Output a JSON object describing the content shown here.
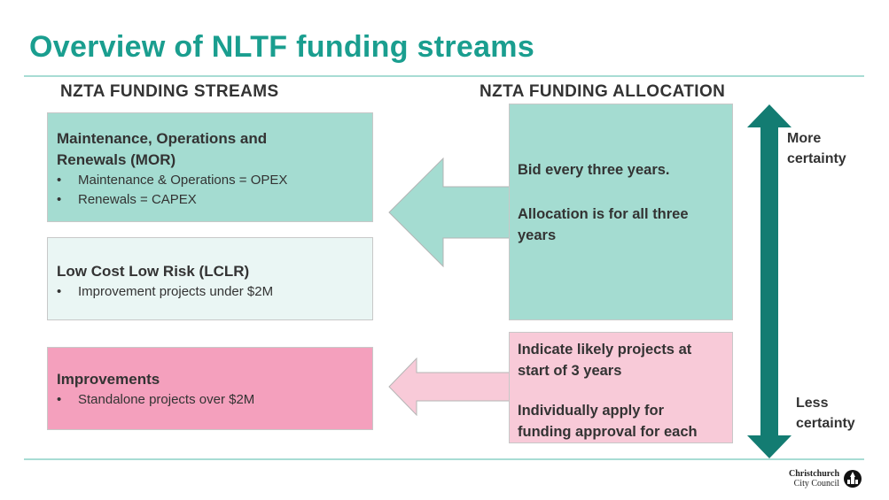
{
  "title": "Overview of NLTF funding streams",
  "headings": {
    "left": "NZTA FUNDING STREAMS",
    "right": "NZTA FUNDING ALLOCATION"
  },
  "streams": {
    "mor": {
      "title_line1": "Maintenance, Operations and",
      "title_line2": "Renewals (MOR)",
      "bullets": [
        "Maintenance & Operations = OPEX",
        "Renewals = CAPEX"
      ]
    },
    "lclr": {
      "title": "Low Cost Low Risk (LCLR)",
      "bullets": [
        "Improvement projects under $2M"
      ]
    },
    "improvements": {
      "title": "Improvements",
      "bullets": [
        "Standalone projects over $2M"
      ]
    }
  },
  "allocation": {
    "upper": {
      "line1": "Bid every three years.",
      "line2": "Allocation is for all three",
      "line3": "years"
    },
    "lower": {
      "line1": "Indicate likely projects at",
      "line2": "start of 3 years",
      "line3": "Individually apply for",
      "line4": "funding approval for each"
    }
  },
  "certainty": {
    "more_line1": "More",
    "more_line2": "certainty",
    "less_line1": "Less",
    "less_line2": "certainty"
  },
  "logo": {
    "line1": "Christchurch",
    "line2": "City Council"
  },
  "colors": {
    "accent_teal": "#1a9e8f",
    "teal_fill": "#a4dcd1",
    "light_teal_fill": "#eaf6f4",
    "pink_fill": "#f4a0bd",
    "light_pink_fill": "#f8cad8",
    "arrow_dark_teal": "#137c72"
  }
}
